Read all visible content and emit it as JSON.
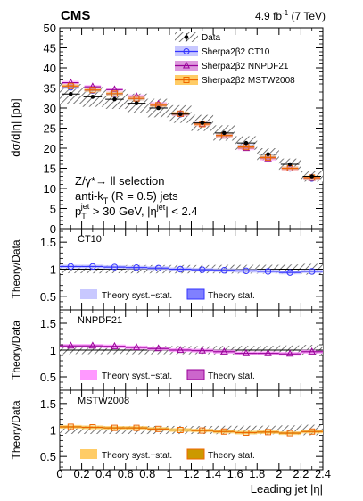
{
  "header": {
    "experiment": "CMS",
    "lumi_value": "4.9 fb",
    "lumi_exp": "-1",
    "lumi_tail": " (7 TeV)"
  },
  "colors": {
    "data": "#000000",
    "ct10": "#3333ff",
    "ct10_band": "#c8c8ff",
    "ct10_stat": "#8080ff",
    "nnpdf": "#990099",
    "nnpdf_band": "#ff99ff",
    "nnpdf_stat": "#cc66cc",
    "mstw": "#ee6600",
    "mstw_band": "#ffcc66",
    "mstw_stat": "#cc9900",
    "hatch": "#555555"
  },
  "selection_text": {
    "line1": "Z/γ*→ ll selection",
    "line2": "anti-k",
    "line2_sub": "T",
    "line2_tail": " (R = 0.5) jets",
    "line3_p": "p",
    "line3_sub": "T",
    "line3_sup": "jet",
    "line3_mid": " > 30 GeV, |η",
    "line3_sup2": "jet",
    "line3_tail": "| < 2.4"
  },
  "legend_main": {
    "data": "Data",
    "ct10": "Sherpa2β2 CT10",
    "nnpdf": "Sherpa2β2 NNPDF21",
    "mstw": "Sherpa2β2 MSTW2008"
  },
  "ratio_panels": [
    {
      "label": "CT10",
      "syst_label": "Theory syst.+stat.",
      "stat_label": "Theory stat."
    },
    {
      "label": "NNPDF21",
      "syst_label": "Theory syst.+stat.",
      "stat_label": "Theory stat."
    },
    {
      "label": "MSTW2008",
      "syst_label": "Theory syst.+stat.",
      "stat_label": "Theory stat."
    }
  ],
  "chart_data": {
    "type": "scatter",
    "xlabel": "Leading jet |η|",
    "ylabel_main": "dσ/d|η| [pb]",
    "ylabel_ratio": "Theory/Data",
    "xlim": [
      0,
      2.4
    ],
    "xticks": [
      "0",
      "0.2",
      "0.4",
      "0.6",
      "0.8",
      "1",
      "1.2",
      "1.4",
      "1.6",
      "1.8",
      "2",
      "2.2",
      "2.4"
    ],
    "ylim_main": [
      0,
      50
    ],
    "yticks_main": [
      "0",
      "5",
      "10",
      "15",
      "20",
      "25",
      "30",
      "35",
      "40",
      "45",
      "50"
    ],
    "ylim_ratio": [
      0.25,
      1.75
    ],
    "yticks_ratio": [
      "0.5",
      "1",
      "1.5"
    ],
    "x_edges": [
      0,
      0.2,
      0.4,
      0.6,
      0.8,
      1.0,
      1.2,
      1.4,
      1.6,
      1.8,
      2.0,
      2.2,
      2.4
    ],
    "x_centers": [
      0.1,
      0.3,
      0.5,
      0.7,
      0.9,
      1.1,
      1.3,
      1.5,
      1.7,
      1.9,
      2.1,
      2.3
    ],
    "data": {
      "values": [
        33.5,
        32.8,
        32.2,
        31.2,
        30.0,
        28.5,
        26.3,
        23.8,
        21.3,
        18.5,
        16.0,
        13.0
      ],
      "uncertainty": [
        2.5,
        2.5,
        2.4,
        2.4,
        2.3,
        2.2,
        2.0,
        1.9,
        1.7,
        1.5,
        1.4,
        1.3
      ]
    },
    "series": [
      {
        "name": "Sherpa2β2 CT10",
        "marker": "circle",
        "values": [
          35.2,
          34.4,
          33.5,
          32.3,
          30.6,
          28.5,
          26.1,
          23.3,
          20.6,
          17.8,
          15.0,
          12.5
        ],
        "ratio": [
          1.05,
          1.05,
          1.04,
          1.03,
          1.02,
          1.0,
          0.99,
          0.98,
          0.97,
          0.96,
          0.94,
          0.96
        ]
      },
      {
        "name": "Sherpa2β2 NNPDF21",
        "marker": "triangle",
        "values": [
          36.3,
          35.3,
          34.6,
          32.9,
          31.0,
          28.5,
          26.0,
          23.1,
          20.0,
          17.4,
          14.9,
          12.6
        ],
        "ratio": [
          1.08,
          1.08,
          1.07,
          1.05,
          1.03,
          1.0,
          0.99,
          0.97,
          0.94,
          0.94,
          0.93,
          0.97
        ]
      },
      {
        "name": "Sherpa2β2 MSTW2008",
        "marker": "square",
        "values": [
          35.5,
          34.5,
          33.6,
          32.4,
          30.7,
          28.6,
          26.0,
          23.2,
          20.3,
          17.7,
          15.0,
          12.7
        ],
        "ratio": [
          1.06,
          1.05,
          1.04,
          1.04,
          1.02,
          1.0,
          0.99,
          0.97,
          0.95,
          0.96,
          0.94,
          0.97
        ]
      }
    ]
  }
}
